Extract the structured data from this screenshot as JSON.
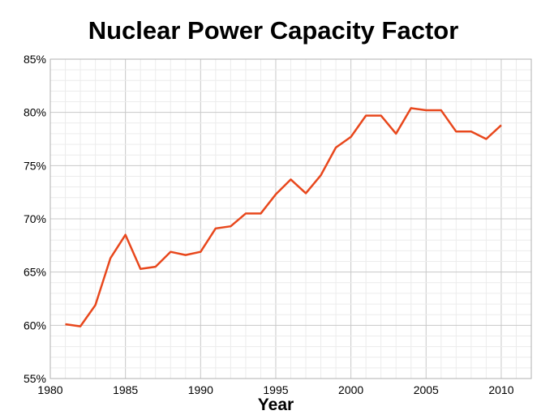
{
  "chart_data": {
    "type": "line",
    "title": "Nuclear Power Capacity Factor",
    "xlabel": "Year",
    "ylabel": "",
    "xlim": [
      1980,
      2012
    ],
    "ylim": [
      55,
      85
    ],
    "x_ticks": [
      1980,
      1985,
      1990,
      1995,
      2000,
      2005,
      2010
    ],
    "x_tick_labels": [
      "1980",
      "1985",
      "1990",
      "1995",
      "2000",
      "2005",
      "2010"
    ],
    "y_ticks": [
      55,
      60,
      65,
      70,
      75,
      80,
      85
    ],
    "y_tick_labels": [
      "55%",
      "60%",
      "65%",
      "70%",
      "75%",
      "80%",
      "85%"
    ],
    "grid": true,
    "line_color": "#e8471c",
    "series": [
      {
        "x": [
          1981,
          1982,
          1983,
          1984,
          1985,
          1986,
          1987,
          1988,
          1989,
          1990,
          1991,
          1992,
          1993,
          1994,
          1995,
          1996,
          1997,
          1998,
          1999,
          2000,
          2001,
          2002,
          2003,
          2004,
          2005,
          2006,
          2007,
          2008,
          2009,
          2010
        ],
        "values": [
          60.1,
          59.9,
          61.9,
          66.3,
          68.5,
          65.3,
          65.5,
          66.9,
          66.6,
          66.9,
          69.1,
          69.3,
          70.5,
          70.5,
          72.3,
          73.7,
          72.4,
          74.1,
          76.7,
          77.7,
          79.7,
          79.7,
          78.0,
          80.4,
          80.2,
          80.2,
          78.2,
          78.2,
          77.5,
          78.8
        ]
      }
    ]
  }
}
